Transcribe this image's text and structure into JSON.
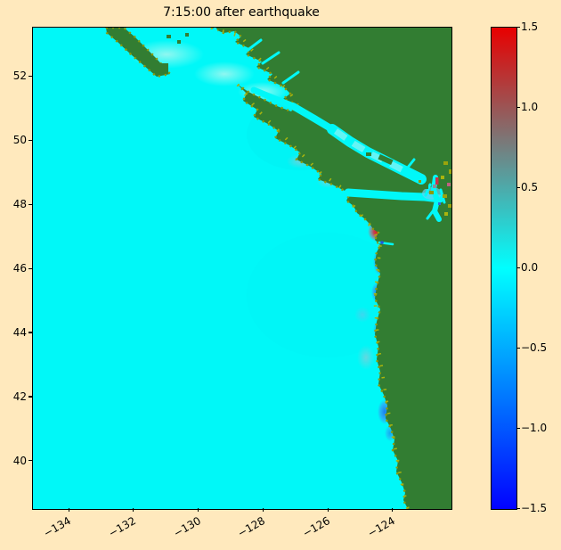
{
  "figure": {
    "title": "7:15:00 after earthquake",
    "background_color": "#ffe9bd"
  },
  "plot": {
    "ocean_color": "#00f8f8",
    "land_color": "#327d32",
    "coast_speckle_color": "#8e9b08",
    "border_color": "#000000"
  },
  "colorbar": {
    "top_color": "#e80000",
    "mid_color": "#00ffff",
    "bottom_color": "#0202ff",
    "min": -1.5,
    "max": 1.5,
    "ticks": [
      {
        "value": 1.5,
        "label": "1.5"
      },
      {
        "value": 1.0,
        "label": "1.0"
      },
      {
        "value": 0.5,
        "label": "0.5"
      },
      {
        "value": 0.0,
        "label": "0.0"
      },
      {
        "value": -0.5,
        "label": "−0.5"
      },
      {
        "value": -1.0,
        "label": "−1.0"
      },
      {
        "value": -1.5,
        "label": "−1.5"
      }
    ]
  },
  "chart_data": {
    "type": "heatmap",
    "title": "7:15:00 after earthquake",
    "xlabel": "",
    "ylabel": "",
    "xlim": [
      -135.13,
      -122.21
    ],
    "ylim": [
      38.52,
      53.54
    ],
    "x_ticks": [
      {
        "value": -134,
        "label": "−134"
      },
      {
        "value": -132,
        "label": "−132"
      },
      {
        "value": -130,
        "label": "−130"
      },
      {
        "value": -128,
        "label": "−128"
      },
      {
        "value": -126,
        "label": "−126"
      },
      {
        "value": -124,
        "label": "−124"
      }
    ],
    "y_ticks": [
      {
        "value": 52,
        "label": "52"
      },
      {
        "value": 50,
        "label": "50"
      },
      {
        "value": 48,
        "label": "48"
      },
      {
        "value": 46,
        "label": "46"
      },
      {
        "value": 44,
        "label": "44"
      },
      {
        "value": 42,
        "label": "42"
      }
    ],
    "y_ticks_extra": [
      {
        "value": 40,
        "label": "40"
      }
    ],
    "colorbar_range": [
      -1.5,
      1.5
    ],
    "field": "sea-surface elevation anomaly (most open ocean near 0.0, cyan)",
    "notable_values": [
      {
        "lon": -124.5,
        "lat": 46.8,
        "value_approx": 1.3,
        "note": "red positive anomaly at coast"
      },
      {
        "lon": -124.4,
        "lat": 45.8,
        "value_approx": -0.9,
        "note": "blue negative patch along coast"
      },
      {
        "lon": -124.5,
        "lat": 44.6,
        "value_approx": -0.5,
        "note": "blue negative patch along coast"
      },
      {
        "lon": -124.3,
        "lat": 41.1,
        "value_approx": -0.8,
        "note": "blue negative patch along coast"
      },
      {
        "lon": -122.7,
        "lat": 48.1,
        "value_approx": 1.2,
        "note": "small red spot in Puget Sound"
      }
    ],
    "land_regions": [
      "Haida Gwaii strip (top left)",
      "BC mainland (top right)",
      "Vancouver Island",
      "Olympic Peninsula",
      "Washington/Oregon coast (right side)"
    ],
    "grid": false,
    "legend": false
  }
}
